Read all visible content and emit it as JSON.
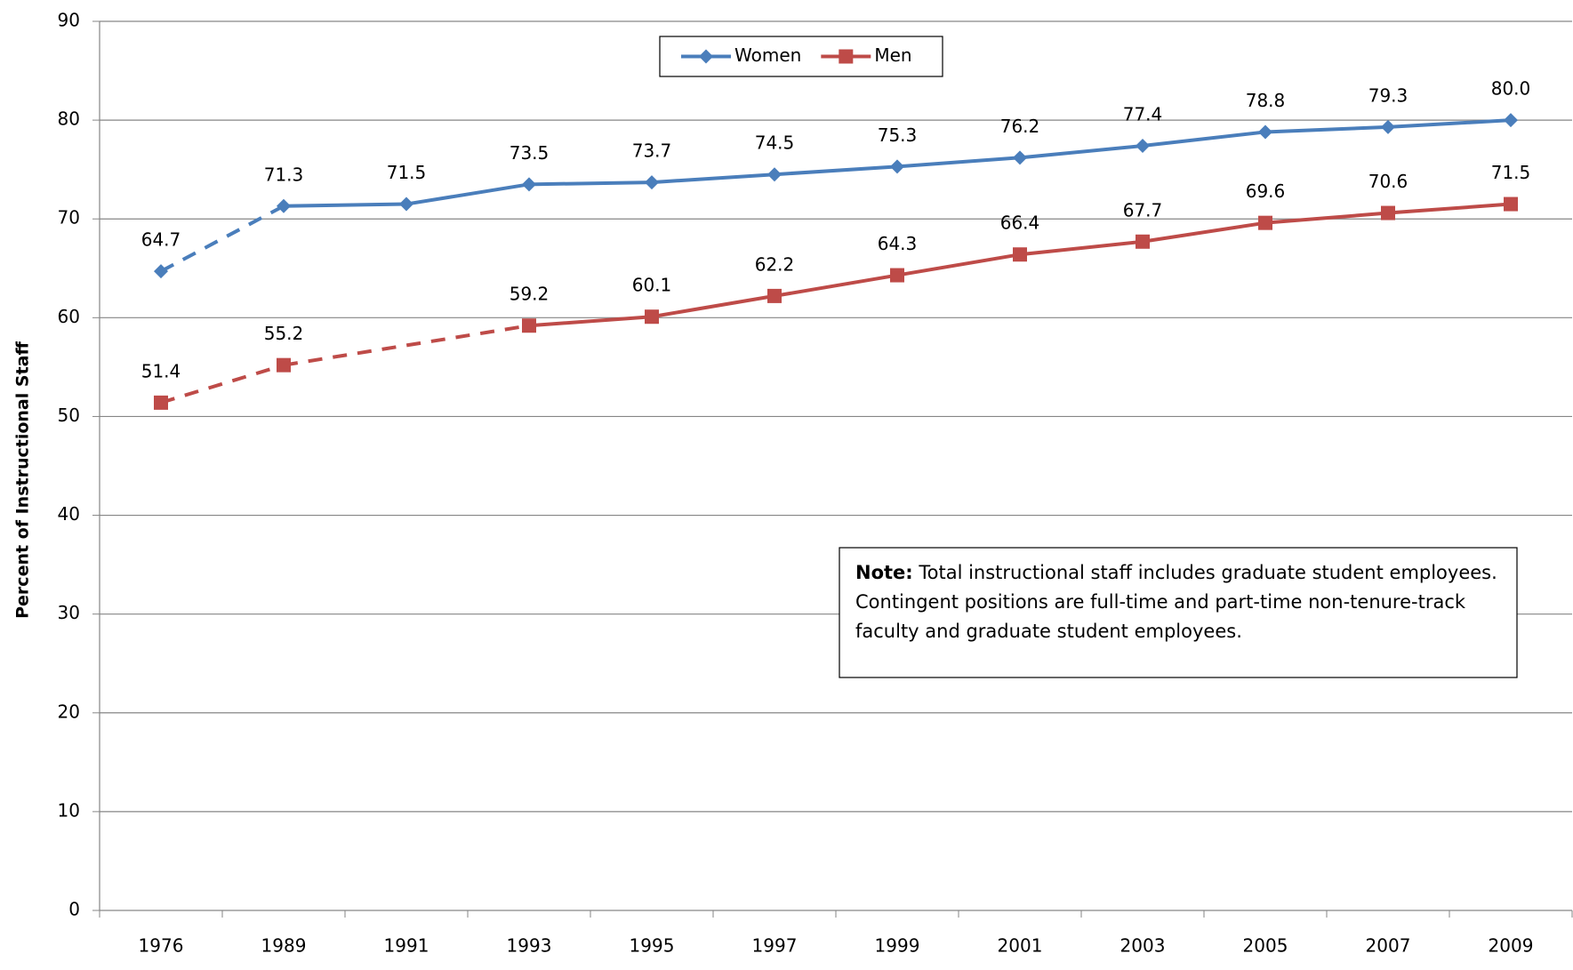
{
  "chart_data": {
    "type": "line",
    "y_label": "Percent of Instructional Staff",
    "categories": [
      "1976",
      "1989",
      "1991",
      "1993",
      "1995",
      "1997",
      "1999",
      "2001",
      "2003",
      "2005",
      "2007",
      "2009"
    ],
    "series": [
      {
        "name": "Women",
        "color": "#4a7ebb",
        "marker": "diamond",
        "dashed_to": "1989",
        "values": [
          64.7,
          71.3,
          71.5,
          73.5,
          73.7,
          74.5,
          75.3,
          76.2,
          77.4,
          78.8,
          79.3,
          80.0
        ],
        "value_labels": [
          "64.7",
          "71.3",
          "71.5",
          "73.5",
          "73.7",
          "74.5",
          "75.3",
          "76.2",
          "77.4",
          "78.8",
          "79.3",
          "80.0"
        ]
      },
      {
        "name": "Men",
        "color": "#be4b48",
        "marker": "square",
        "dashed_to": "1993",
        "values": [
          51.4,
          55.2,
          null,
          59.2,
          60.1,
          62.2,
          64.3,
          66.4,
          67.7,
          69.6,
          70.6,
          71.5
        ],
        "value_labels": [
          "51.4",
          "55.2",
          null,
          "59.2",
          "60.1",
          "62.2",
          "64.3",
          "66.4",
          "67.7",
          "69.6",
          "70.6",
          "71.5"
        ]
      }
    ],
    "ylim": [
      0,
      90
    ],
    "yticks": [
      0,
      10,
      20,
      30,
      40,
      50,
      60,
      70,
      80,
      90
    ],
    "grid": true,
    "legend": "top",
    "note": {
      "label": "Note:",
      "text": "Total instructional staff includes graduate student employees. Contingent positions are full-time and part-time non-tenure-track faculty and graduate student employees."
    }
  }
}
